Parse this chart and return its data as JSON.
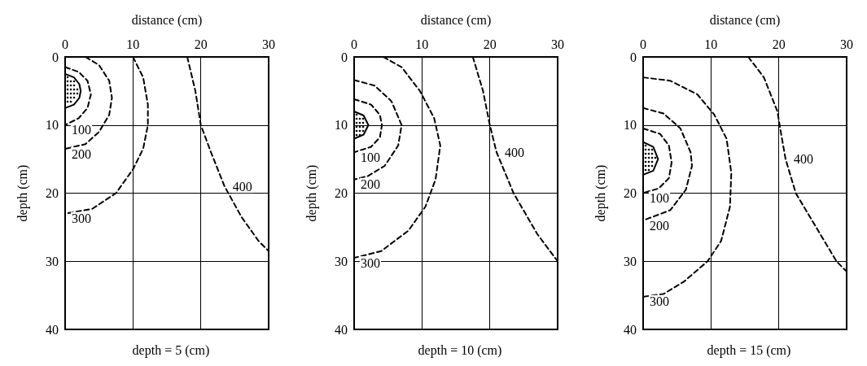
{
  "chart_data": [
    {
      "type": "line",
      "title": "depth = 5 (cm)",
      "xlabel": "distance (cm)",
      "ylabel": "depth (cm)",
      "xlim": [
        0,
        30
      ],
      "xticks": [
        0,
        10,
        20,
        30
      ],
      "ylim": [
        40,
        0
      ],
      "yticks": [
        0,
        10,
        20,
        30,
        40
      ],
      "grid": true,
      "marker": "none",
      "series": [
        {
          "color": "#000000",
          "line_style": "solid",
          "x": [
            0,
            1.3,
            2.1,
            2.3,
            2.1,
            1.3,
            0
          ],
          "values": [
            2.5,
            3,
            4,
            5,
            6,
            7,
            7.5
          ]
        },
        {
          "name": "100",
          "color": "#000000",
          "line_style": "dashed",
          "x": [
            0,
            2,
            3.3,
            3.8,
            3.3,
            2,
            0
          ],
          "values": [
            1.5,
            2.2,
            3.5,
            5.5,
            7.5,
            9,
            10
          ]
        },
        {
          "name": "200",
          "color": "#000000",
          "line_style": "dashed",
          "x": [
            3,
            5,
            6.5,
            6.9,
            6.5,
            5,
            3,
            0
          ],
          "values": [
            0,
            1.2,
            3.5,
            6,
            8.5,
            11,
            12.8,
            13.5
          ]
        },
        {
          "name": "300",
          "color": "#000000",
          "line_style": "dashed",
          "x": [
            10,
            11.5,
            12.2,
            12.2,
            11.5,
            10,
            7.5,
            4,
            0
          ],
          "values": [
            0,
            3,
            7,
            10,
            13.5,
            16.5,
            20,
            22.3,
            23
          ]
        },
        {
          "name": "400",
          "color": "#000000",
          "line_style": "dashed",
          "x": [
            18,
            19.2,
            20,
            21.5,
            23.5,
            26,
            28.5,
            30
          ],
          "values": [
            0,
            5,
            10,
            14,
            19,
            23.5,
            27,
            28.5
          ]
        }
      ]
    },
    {
      "type": "line",
      "title": "depth = 10 (cm)",
      "xlabel": "distance (cm)",
      "ylabel": "depth (cm)",
      "xlim": [
        0,
        30
      ],
      "xticks": [
        0,
        10,
        20,
        30
      ],
      "ylim": [
        40,
        0
      ],
      "yticks": [
        0,
        10,
        20,
        30,
        40
      ],
      "grid": true,
      "marker": "none",
      "series": [
        {
          "color": "#000000",
          "line_style": "solid",
          "x": [
            0,
            1.4,
            2.1,
            1.4,
            0
          ],
          "values": [
            8,
            8.6,
            10,
            11.4,
            12
          ]
        },
        {
          "name": "100",
          "color": "#000000",
          "line_style": "dashed",
          "x": [
            0,
            2.5,
            3.8,
            4.1,
            3.8,
            2.5,
            0
          ],
          "values": [
            6.2,
            7,
            8.5,
            10,
            11.8,
            13.2,
            14
          ]
        },
        {
          "name": "200",
          "color": "#000000",
          "line_style": "dashed",
          "x": [
            0,
            3,
            5.5,
            7,
            6.5,
            4.5,
            2,
            0
          ],
          "values": [
            3.4,
            4.2,
            6.5,
            10,
            13,
            16,
            17.5,
            18
          ]
        },
        {
          "name": "300",
          "color": "#000000",
          "line_style": "dashed",
          "x": [
            4.3,
            7,
            9.7,
            11.8,
            12.7,
            12,
            10.5,
            8,
            4,
            0
          ],
          "values": [
            0,
            1.5,
            5,
            9,
            13,
            18,
            22,
            25.5,
            28.5,
            29.5
          ]
        },
        {
          "name": "400",
          "color": "#000000",
          "line_style": "dashed",
          "x": [
            17.5,
            19,
            20,
            21,
            23.5,
            27,
            30
          ],
          "values": [
            0,
            5,
            10,
            14,
            20,
            26,
            30
          ]
        }
      ]
    },
    {
      "type": "line",
      "title": "depth = 15 (cm)",
      "xlabel": "distance (cm)",
      "ylabel": "depth (cm)",
      "xlim": [
        0,
        30
      ],
      "xticks": [
        0,
        10,
        20,
        30
      ],
      "ylim": [
        40,
        0
      ],
      "yticks": [
        0,
        10,
        20,
        30,
        40
      ],
      "grid": true,
      "marker": "none",
      "series": [
        {
          "color": "#000000",
          "line_style": "solid",
          "x": [
            0,
            1.5,
            2.2,
            1.5,
            0
          ],
          "values": [
            12.5,
            13.2,
            15,
            16.7,
            17.3
          ]
        },
        {
          "name": "100",
          "color": "#000000",
          "line_style": "dashed",
          "x": [
            0,
            2.5,
            3.8,
            4.2,
            3.8,
            2.3,
            0
          ],
          "values": [
            10.5,
            11.3,
            13,
            15.5,
            17.8,
            19.3,
            20
          ]
        },
        {
          "name": "200",
          "color": "#000000",
          "line_style": "dashed",
          "x": [
            0,
            3,
            5.5,
            7,
            7.2,
            6.3,
            4,
            0
          ],
          "values": [
            7.5,
            8.3,
            10.5,
            14,
            16,
            19.5,
            22.5,
            24
          ]
        },
        {
          "name": "300",
          "color": "#000000",
          "line_style": "dashed",
          "x": [
            0,
            4,
            8,
            10.5,
            12.3,
            13,
            12.8,
            11.5,
            9.5,
            6,
            3,
            0
          ],
          "values": [
            3,
            3.5,
            5.5,
            8.5,
            12,
            17,
            22,
            27,
            30,
            33,
            34.8,
            35.2
          ]
        },
        {
          "name": "400",
          "color": "#000000",
          "line_style": "dashed",
          "x": [
            15.5,
            17.8,
            19.8,
            20.2,
            21,
            22.5,
            25.5,
            28.5,
            30
          ],
          "values": [
            0,
            3,
            8,
            10.5,
            15,
            20,
            25,
            30,
            31.5
          ]
        }
      ]
    }
  ]
}
